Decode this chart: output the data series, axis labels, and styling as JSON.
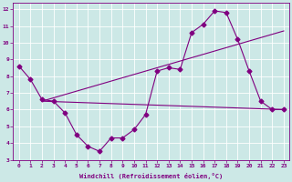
{
  "xlabel": "Windchill (Refroidissement éolien,°C)",
  "xlim": [
    -0.5,
    23.5
  ],
  "ylim": [
    3,
    12.4
  ],
  "yticks": [
    3,
    4,
    5,
    6,
    7,
    8,
    9,
    10,
    11,
    12
  ],
  "xticks": [
    0,
    1,
    2,
    3,
    4,
    5,
    6,
    7,
    8,
    9,
    10,
    11,
    12,
    13,
    14,
    15,
    16,
    17,
    18,
    19,
    20,
    21,
    22,
    23
  ],
  "bg_color": "#cce8e6",
  "grid_color": "#ffffff",
  "line_color": "#800080",
  "line1_x": [
    0,
    1,
    2,
    3,
    4,
    5,
    6,
    7,
    8,
    9,
    10,
    11,
    12,
    13,
    14,
    15,
    16,
    17,
    18,
    19,
    20,
    21,
    22,
    23
  ],
  "line1_y": [
    8.6,
    7.8,
    6.6,
    6.5,
    5.8,
    4.5,
    3.8,
    3.5,
    4.3,
    4.3,
    4.8,
    5.7,
    8.3,
    8.5,
    8.4,
    10.6,
    11.1,
    11.9,
    11.8,
    10.2,
    8.3,
    6.5,
    6.0,
    6.0
  ],
  "line2_x": [
    2,
    23
  ],
  "line2_y": [
    6.5,
    6.0
  ],
  "line3_x": [
    2,
    23
  ],
  "line3_y": [
    6.5,
    10.7
  ],
  "markersize": 2.5
}
